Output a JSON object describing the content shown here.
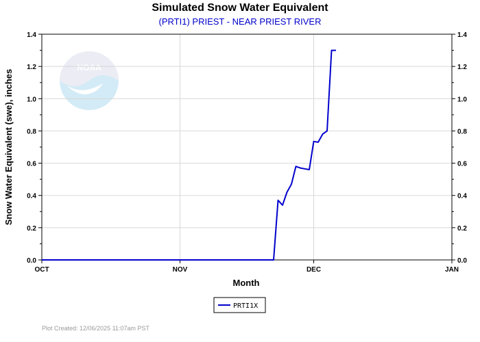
{
  "chart_data": {
    "type": "line",
    "title": "Simulated Snow Water Equivalent",
    "subtitle": "(PRTI1) PRIEST - NEAR PRIEST RIVER",
    "xlabel": "Month",
    "ylabel": "Snow Water Equivalent (swe),  inches",
    "x_ticks": [
      "OCT",
      "NOV",
      "DEC",
      "JAN"
    ],
    "xlim": [
      "2025-10-01",
      "2026-01-01"
    ],
    "ylim": [
      0,
      1.4
    ],
    "y_ticks": [
      "0.0",
      "0.2",
      "0.4",
      "0.6",
      "0.8",
      "1.0",
      "1.2",
      "1.4"
    ],
    "grid": true,
    "legend_position": "bottom-center",
    "series": [
      {
        "name": "PRTI1X",
        "color": "#0000cc",
        "x": [
          "2025-10-01",
          "2025-11-22",
          "2025-11-23",
          "2025-11-24",
          "2025-11-25",
          "2025-11-26",
          "2025-11-27",
          "2025-11-28",
          "2025-11-29",
          "2025-11-30",
          "2025-12-01",
          "2025-12-02",
          "2025-12-03",
          "2025-12-04",
          "2025-12-05",
          "2025-12-06"
        ],
        "values": [
          0.0,
          0.0,
          0.37,
          0.34,
          0.42,
          0.47,
          0.58,
          0.57,
          0.565,
          0.56,
          0.735,
          0.73,
          0.78,
          0.8,
          1.3,
          1.3
        ]
      }
    ]
  },
  "watermark": {
    "logo_text": "NOAA"
  },
  "footer": {
    "plot_created": "Plot Created:  12/06/2025 11:07am PST"
  }
}
